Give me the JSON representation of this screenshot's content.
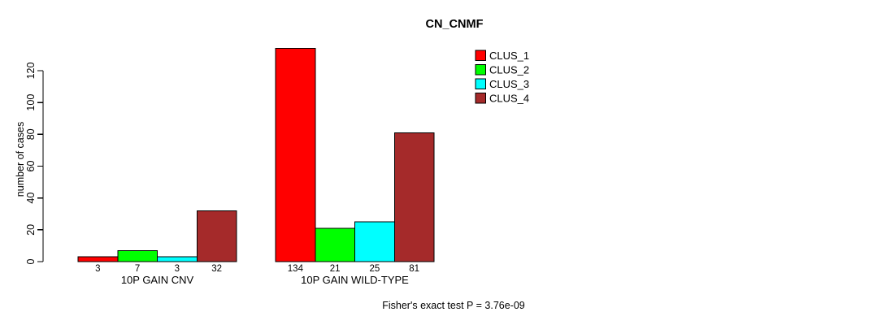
{
  "chart_data": {
    "type": "bar",
    "title": "CN_CNMF",
    "xlabel": "",
    "ylabel": "number of cases",
    "ylim": [
      0,
      120
    ],
    "yticks": [
      0,
      20,
      40,
      60,
      80,
      100,
      120
    ],
    "grid": false,
    "legend_position": "top-right",
    "categories": [
      "10P GAIN CNV",
      "10P GAIN WILD-TYPE"
    ],
    "series": [
      {
        "name": "CLUS_1",
        "color": "#ff0000",
        "values": [
          3,
          134
        ]
      },
      {
        "name": "CLUS_2",
        "color": "#00ff00",
        "values": [
          7,
          21
        ]
      },
      {
        "name": "CLUS_3",
        "color": "#00ffff",
        "values": [
          3,
          25
        ]
      },
      {
        "name": "CLUS_4",
        "color": "#a52a2a",
        "values": [
          32,
          81
        ]
      }
    ],
    "bar_value_labels": [
      [
        3,
        7,
        3,
        32
      ],
      [
        134,
        21,
        25,
        81
      ]
    ],
    "annotation": "Fisher's exact test P = 3.76e-09"
  }
}
